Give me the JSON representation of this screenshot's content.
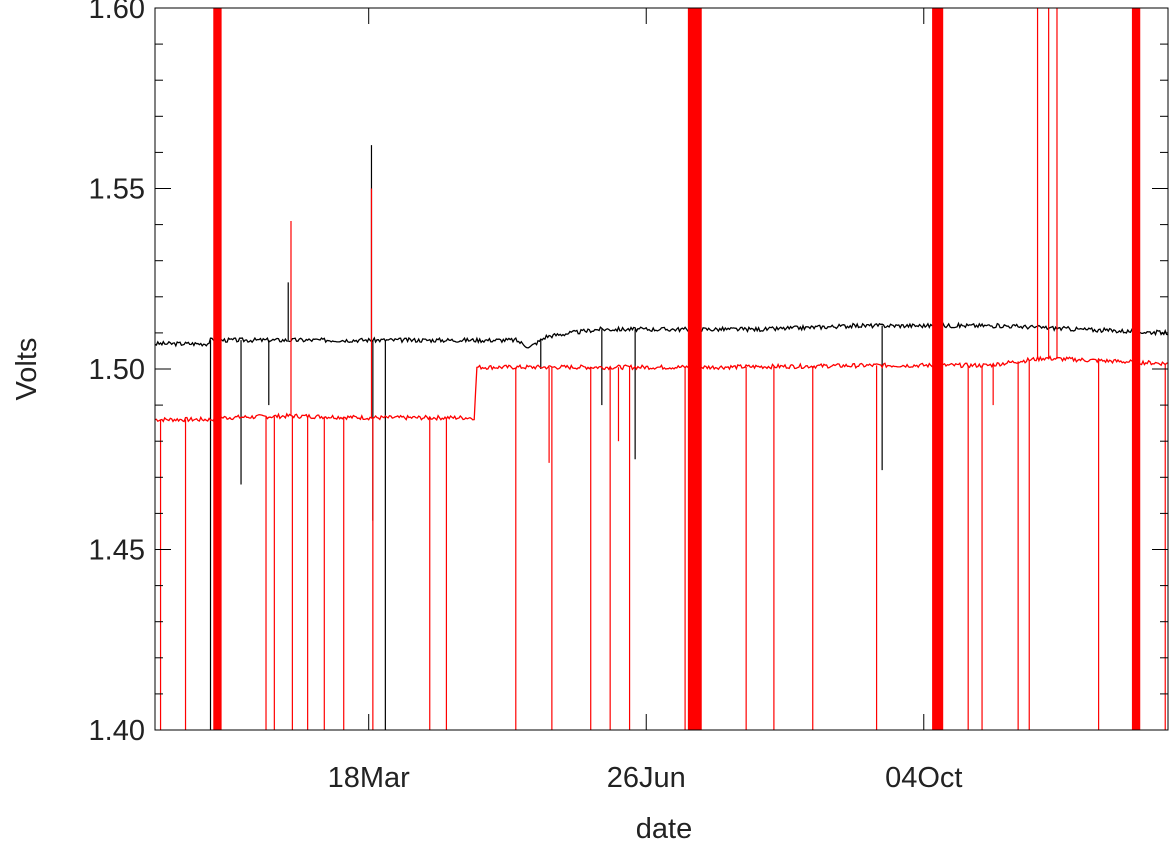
{
  "chart_data": {
    "type": "line",
    "title": "",
    "xlabel": "date",
    "ylabel": "Volts",
    "ylim": [
      1.4,
      1.6
    ],
    "y_ticks": [
      "1.40",
      "1.45",
      "1.50",
      "1.55",
      "1.60"
    ],
    "x_range_days": [
      0,
      365
    ],
    "x_ticks": [
      {
        "label": "18Mar",
        "day": 77
      },
      {
        "label": "26Jun",
        "day": 177
      },
      {
        "label": "04Oct",
        "day": 277
      }
    ],
    "grid": false,
    "colors": {
      "black_series": "#000000",
      "red_series": "#ff0000"
    },
    "series": [
      {
        "color": "black",
        "baseline": [
          {
            "x": 0,
            "y": 1.507
          },
          {
            "x": 19,
            "y": 1.507
          },
          {
            "x": 20,
            "y": 1.508
          },
          {
            "x": 78,
            "y": 1.508
          },
          {
            "x": 130,
            "y": 1.508
          },
          {
            "x": 135,
            "y": 1.506
          },
          {
            "x": 141,
            "y": 1.509
          },
          {
            "x": 150,
            "y": 1.51
          },
          {
            "x": 160,
            "y": 1.511
          },
          {
            "x": 220,
            "y": 1.511
          },
          {
            "x": 252,
            "y": 1.512
          },
          {
            "x": 305,
            "y": 1.512
          },
          {
            "x": 333,
            "y": 1.511
          },
          {
            "x": 365,
            "y": 1.51
          }
        ],
        "spikes": [
          {
            "x": 20,
            "y": 1.4
          },
          {
            "x": 31,
            "y": 1.468
          },
          {
            "x": 41,
            "y": 1.49
          },
          {
            "x": 48,
            "y": 1.524
          },
          {
            "x": 78,
            "y": 1.562
          },
          {
            "x": 78.5,
            "y": 1.458
          },
          {
            "x": 83,
            "y": 1.4
          },
          {
            "x": 139,
            "y": 1.5
          },
          {
            "x": 161,
            "y": 1.49
          },
          {
            "x": 173,
            "y": 1.475
          },
          {
            "x": 262,
            "y": 1.472
          },
          {
            "x": 283,
            "y": 1.58
          },
          {
            "x": 354,
            "y": 1.4
          }
        ]
      },
      {
        "color": "red",
        "baseline": [
          {
            "x": 0,
            "y": 1.486
          },
          {
            "x": 20,
            "y": 1.486
          },
          {
            "x": 24,
            "y": 1.4865
          },
          {
            "x": 49,
            "y": 1.487
          },
          {
            "x": 78,
            "y": 1.4865
          },
          {
            "x": 83,
            "y": 1.4865
          },
          {
            "x": 115,
            "y": 1.4865
          },
          {
            "x": 116,
            "y": 1.5005
          },
          {
            "x": 160,
            "y": 1.5005
          },
          {
            "x": 200,
            "y": 1.5005
          },
          {
            "x": 260,
            "y": 1.501
          },
          {
            "x": 300,
            "y": 1.501
          },
          {
            "x": 320,
            "y": 1.503
          },
          {
            "x": 365,
            "y": 1.5015
          }
        ],
        "spikes": [
          {
            "x": 2,
            "y": 1.4
          },
          {
            "x": 11,
            "y": 1.4
          },
          {
            "x": 40,
            "y": 1.4
          },
          {
            "x": 43,
            "y": 1.4
          },
          {
            "x": 49,
            "y": 1.541
          },
          {
            "x": 49.5,
            "y": 1.4
          },
          {
            "x": 55,
            "y": 1.4
          },
          {
            "x": 61,
            "y": 1.4
          },
          {
            "x": 68,
            "y": 1.4
          },
          {
            "x": 78,
            "y": 1.55
          },
          {
            "x": 78.5,
            "y": 1.4
          },
          {
            "x": 99,
            "y": 1.4
          },
          {
            "x": 105,
            "y": 1.4
          },
          {
            "x": 130,
            "y": 1.4
          },
          {
            "x": 142,
            "y": 1.474
          },
          {
            "x": 143,
            "y": 1.4
          },
          {
            "x": 157,
            "y": 1.4
          },
          {
            "x": 164,
            "y": 1.4
          },
          {
            "x": 167,
            "y": 1.48
          },
          {
            "x": 171,
            "y": 1.4
          },
          {
            "x": 191,
            "y": 1.4
          },
          {
            "x": 196,
            "y": 1.4
          },
          {
            "x": 213,
            "y": 1.4
          },
          {
            "x": 223,
            "y": 1.4
          },
          {
            "x": 237,
            "y": 1.4
          },
          {
            "x": 260,
            "y": 1.4
          },
          {
            "x": 293,
            "y": 1.4
          },
          {
            "x": 298,
            "y": 1.4
          },
          {
            "x": 302,
            "y": 1.49
          },
          {
            "x": 311,
            "y": 1.4
          },
          {
            "x": 315,
            "y": 1.4
          },
          {
            "x": 318,
            "y": 1.6
          },
          {
            "x": 322,
            "y": 1.6
          },
          {
            "x": 325,
            "y": 1.6
          },
          {
            "x": 340,
            "y": 1.4
          },
          {
            "x": 364,
            "y": 1.4
          }
        ],
        "saturated_bands": [
          {
            "from": 21,
            "to": 24
          },
          {
            "from": 192,
            "to": 197
          },
          {
            "from": 280,
            "to": 284
          },
          {
            "from": 352,
            "to": 355
          }
        ]
      }
    ]
  }
}
